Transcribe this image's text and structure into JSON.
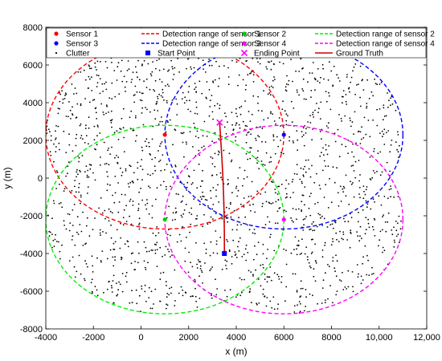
{
  "chart_data": {
    "type": "scatter",
    "title": "",
    "xlabel": "x (m)",
    "ylabel": "y (m)",
    "xlim": [
      -4000,
      12000
    ],
    "ylim": [
      -8000,
      8000
    ],
    "x_ticks": [
      -4000,
      -2000,
      0,
      2000,
      4000,
      6000,
      8000,
      10000,
      12000
    ],
    "x_tick_labels": [
      "-4000",
      "-2000",
      "0",
      "2000",
      "4000",
      "6000",
      "8000",
      "10,000",
      "12,000"
    ],
    "y_ticks": [
      -8000,
      -6000,
      -4000,
      -2000,
      0,
      2000,
      4000,
      6000,
      8000
    ],
    "y_tick_labels": [
      "-8000",
      "-6000",
      "-4000",
      "-2000",
      "0",
      "2000",
      "4000",
      "6000",
      "8000"
    ],
    "grid": false,
    "legend_position": "top",
    "legend": [
      {
        "label": "Sensor 1",
        "kind": "dot",
        "color": "#ff0000"
      },
      {
        "label": "Detection range of sensor 1",
        "kind": "dash",
        "color": "#ff0000"
      },
      {
        "label": "Sensor 2",
        "kind": "dot",
        "color": "#00cc00"
      },
      {
        "label": "Detection range of sensor 2",
        "kind": "dash",
        "color": "#00ee00"
      },
      {
        "label": "Sensor 3",
        "kind": "dot",
        "color": "#0000ff"
      },
      {
        "label": "Detection range of sensor 3",
        "kind": "dash",
        "color": "#0000ff"
      },
      {
        "label": "Ending Point",
        "kind": "cross",
        "color": "#ff00ff"
      },
      {
        "label": "Detection range of sensor 4",
        "kind": "dash",
        "color": "#ff00ff"
      },
      {
        "label": "Clutter",
        "kind": "smalldot",
        "color": "#000000"
      },
      {
        "label": "Start Point",
        "kind": "square",
        "color": "#0000ff"
      },
      {
        "label": "Ground Truth",
        "kind": "line",
        "color": "#cc0000"
      },
      {
        "label": "Sensor 4",
        "kind": "dot",
        "color": "#ff00ff"
      }
    ],
    "sensors": [
      {
        "name": "Sensor 1",
        "x": 1000,
        "y": 2300,
        "radius": 5000,
        "color": "#ff0000",
        "range_color": "#ff0000"
      },
      {
        "name": "Sensor 2",
        "x": 1000,
        "y": -2200,
        "radius": 5000,
        "color": "#00cc00",
        "range_color": "#00ee00"
      },
      {
        "name": "Sensor 3",
        "x": 6000,
        "y": 2300,
        "radius": 5000,
        "color": "#0000ff",
        "range_color": "#0000ff"
      },
      {
        "name": "Sensor 4",
        "x": 6000,
        "y": -2200,
        "radius": 5000,
        "color": "#ff00ff",
        "range_color": "#ff00ff"
      }
    ],
    "start_point": {
      "x": 3500,
      "y": -4000
    },
    "ending_point": {
      "x": 3300,
      "y": 2950
    },
    "ground_truth": {
      "x": [
        3300,
        3350,
        3400,
        3440,
        3470,
        3490,
        3500,
        3500
      ],
      "y": [
        2950,
        2000,
        1000,
        0,
        -1000,
        -2000,
        -3000,
        -4000
      ]
    },
    "clutter": {
      "count": 1800,
      "region": "union of the four detection ranges",
      "color": "#000000"
    }
  }
}
